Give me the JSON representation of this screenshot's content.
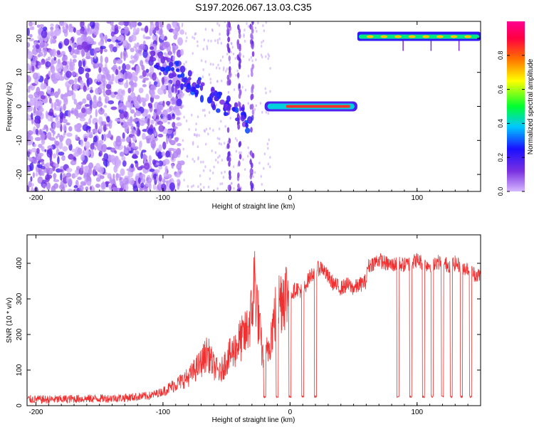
{
  "title": "S197.2026.067.13.03.C35",
  "chart_data": [
    {
      "type": "heatmap",
      "xlabel": "Height of straight line (km)",
      "ylabel": "Frequency (Hz)",
      "xlim": [
        -207,
        150
      ],
      "ylim": [
        -25,
        25
      ],
      "xticks": [
        -200,
        -100,
        0,
        100
      ],
      "yticks": [
        -20,
        -10,
        0,
        10,
        20
      ],
      "colorbar": {
        "label": "Normalized spectral amplitude",
        "range": [
          0,
          1
        ],
        "ticks": [
          "0.0",
          "0.2",
          "0.4",
          "0.6",
          "0.8"
        ],
        "colors": [
          "#d6b8ff",
          "#7a30e0",
          "#1a10ff",
          "#00c8ff",
          "#00ff30",
          "#ffff00",
          "#ff7000",
          "#ff0040",
          "#ff0090"
        ]
      },
      "features": [
        {
          "name": "scattered noise region",
          "x_range": [
            -207,
            -85
          ],
          "freq_range": [
            -25,
            25
          ],
          "amplitude": 0.15
        },
        {
          "name": "descending chirp",
          "x_start": -110,
          "x_end": -30,
          "freq_start": 15,
          "freq_end": -5,
          "amplitude": 0.3
        },
        {
          "name": "vertical streaks",
          "x": [
            -48,
            -40,
            -30
          ],
          "amplitude": 0.2
        },
        {
          "name": "tone near 0 Hz",
          "x_range": [
            -20,
            53
          ],
          "freq": 0,
          "amplitude": 0.9
        },
        {
          "name": "tone near 20 Hz",
          "x_range": [
            53,
            150
          ],
          "freq": 20.5,
          "amplitude": 0.7
        }
      ]
    },
    {
      "type": "line",
      "xlabel": "Height of straight line (km)",
      "ylabel": "SNR (10 * v/v)",
      "xlim": [
        -207,
        150
      ],
      "ylim": [
        0,
        480
      ],
      "xticks": [
        -200,
        -100,
        0,
        100
      ],
      "yticks": [
        0,
        100,
        200,
        300,
        400
      ],
      "color": "#f03030",
      "series": [
        {
          "name": "SNR",
          "x": [
            -207,
            -190,
            -170,
            -150,
            -130,
            -110,
            -100,
            -90,
            -80,
            -75,
            -70,
            -65,
            -60,
            -55,
            -50,
            -45,
            -40,
            -35,
            -30,
            -28,
            -25,
            -22,
            -20,
            -15,
            -10,
            -5,
            0,
            5,
            10,
            15,
            20,
            25,
            30,
            35,
            40,
            45,
            50,
            55,
            60,
            61,
            65,
            70,
            75,
            80,
            85,
            90,
            95,
            100,
            105,
            110,
            115,
            120,
            125,
            130,
            135,
            140,
            145,
            150
          ],
          "y": [
            18,
            17,
            19,
            20,
            22,
            28,
            40,
            60,
            80,
            100,
            120,
            150,
            110,
            90,
            130,
            150,
            180,
            200,
            260,
            360,
            250,
            150,
            120,
            200,
            280,
            320,
            310,
            330,
            320,
            360,
            380,
            390,
            360,
            340,
            330,
            340,
            330,
            340,
            350,
            390,
            400,
            410,
            400,
            395,
            400,
            395,
            400,
            410,
            400,
            395,
            405,
            400,
            395,
            400,
            390,
            385,
            370,
            365
          ]
        }
      ],
      "dropouts_x": [
        -20,
        -10,
        0,
        10,
        20,
        85,
        95,
        105,
        112,
        120,
        127,
        135,
        142
      ],
      "dropout_level": 25
    }
  ]
}
